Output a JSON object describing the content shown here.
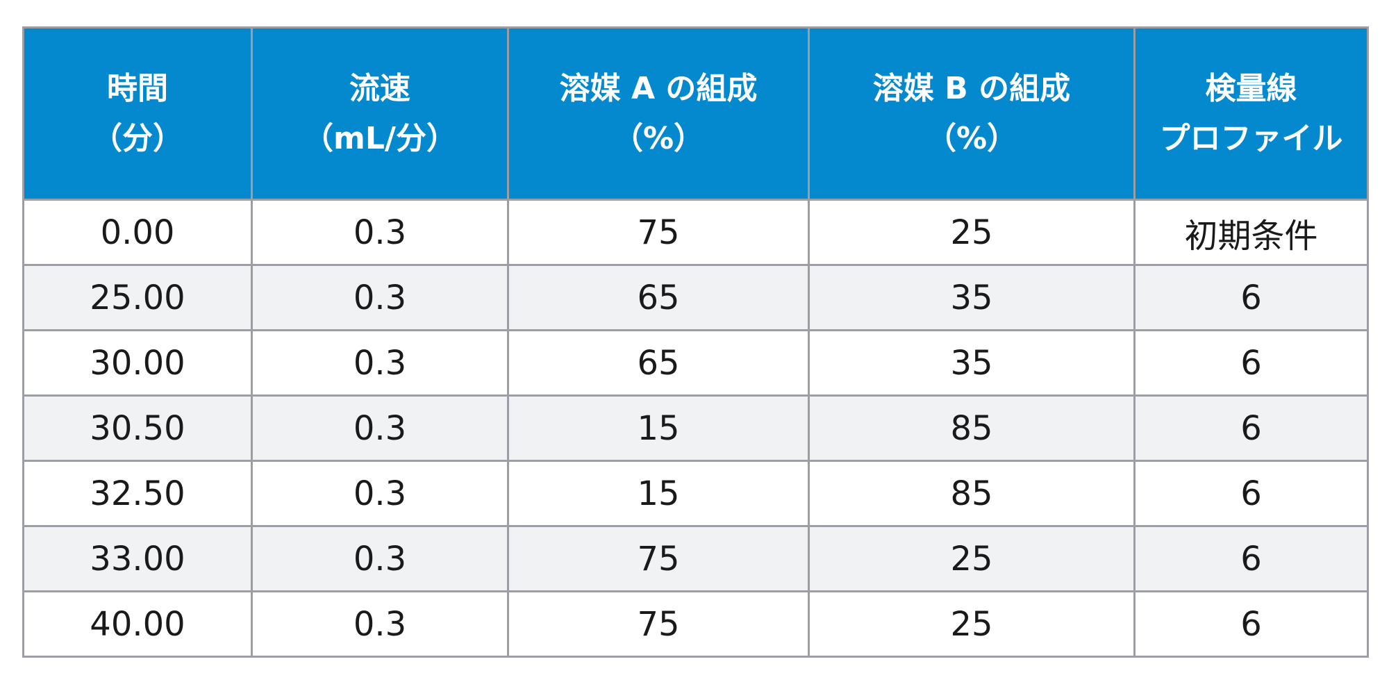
{
  "table": {
    "headers": [
      {
        "line1": "時間",
        "line2": "（分）"
      },
      {
        "line1": "流速",
        "line2": "（mL/分）"
      },
      {
        "line1": "溶媒 A の組成",
        "line2": "（%）"
      },
      {
        "line1": "溶媒 B の組成",
        "line2": "（%）"
      },
      {
        "line1": "検量線",
        "line2": "プロファイル"
      }
    ],
    "rows": [
      [
        "0.00",
        "0.3",
        "75",
        "25",
        "初期条件"
      ],
      [
        "25.00",
        "0.3",
        "65",
        "35",
        "6"
      ],
      [
        "30.00",
        "0.3",
        "65",
        "35",
        "6"
      ],
      [
        "30.50",
        "0.3",
        "15",
        "85",
        "6"
      ],
      [
        "32.50",
        "0.3",
        "15",
        "85",
        "6"
      ],
      [
        "33.00",
        "0.3",
        "75",
        "25",
        "6"
      ],
      [
        "40.00",
        "0.3",
        "75",
        "25",
        "6"
      ]
    ]
  },
  "colors": {
    "header_bg": "#0489cf",
    "header_text": "#ffffff",
    "border": "#9c9ea3",
    "alt_row_bg": "#f1f2f4"
  }
}
